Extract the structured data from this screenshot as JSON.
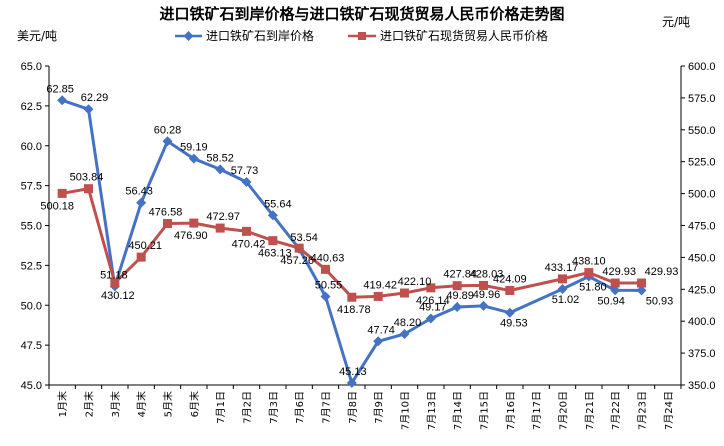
{
  "chart_data": {
    "type": "line",
    "title": "进口铁矿石到岸价格与进口铁矿石现货贸易人民币价格走势图",
    "ylabel_left": "美元/吨",
    "ylabel_right": "元/吨",
    "categories": [
      "1月末",
      "2月末",
      "3月末",
      "4月末",
      "5月末",
      "6月末",
      "7月1日",
      "7月2日",
      "7月3日",
      "7月6日",
      "7月7日",
      "7月8日",
      "7月9日",
      "7月10日",
      "7月13日",
      "7月14日",
      "7月15日",
      "7月16日",
      "7月17日",
      "7月20日",
      "7月21日",
      "7月22日",
      "7月23日",
      "7月24日"
    ],
    "ylim_left": [
      45.0,
      65.0
    ],
    "ylim_right": [
      350.0,
      600.0
    ],
    "yticks_left": [
      "45.0",
      "47.5",
      "50.0",
      "52.5",
      "55.0",
      "57.5",
      "60.0",
      "62.5",
      "65.0"
    ],
    "yticks_right": [
      "350.0",
      "375.0",
      "400.0",
      "425.0",
      "450.0",
      "475.0",
      "500.0",
      "525.0",
      "550.0",
      "575.0",
      "600.0"
    ],
    "grid": false,
    "legend_position": "top",
    "series": [
      {
        "name": "进口铁矿石到岸价格",
        "axis": "left",
        "color": "#4472c4",
        "marker": "diamond",
        "values": [
          62.85,
          62.29,
          51.18,
          56.43,
          60.28,
          59.19,
          58.52,
          57.73,
          55.64,
          53.54,
          50.55,
          45.13,
          47.74,
          48.2,
          49.17,
          49.89,
          49.96,
          49.53,
          null,
          51.02,
          51.8,
          50.94,
          50.93,
          null
        ],
        "labels": [
          "62.85",
          "62.29",
          "51.18",
          "56.43",
          "60.28",
          "59.19",
          "58.52",
          "57.73",
          "55.64",
          "53.54",
          "50.55",
          "45.13",
          "47.74",
          "48.20",
          "49.17",
          "49.89",
          "49.96",
          "49.53",
          "",
          "51.02",
          "51.80",
          "50.94",
          "50.93",
          ""
        ]
      },
      {
        "name": "进口铁矿石现货贸易人民币价格",
        "axis": "right",
        "color": "#c0504d",
        "marker": "square",
        "values": [
          500.18,
          503.84,
          430.12,
          450.21,
          476.58,
          476.9,
          472.97,
          470.42,
          463.13,
          457.26,
          440.63,
          418.78,
          419.42,
          422.1,
          426.14,
          427.84,
          428.03,
          424.09,
          null,
          433.17,
          438.1,
          429.93,
          429.93,
          null
        ],
        "labels": [
          "500.18",
          "503.84",
          "430.12",
          "450.21",
          "476.58",
          "476.90",
          "472.97",
          "470.42",
          "463.13",
          "457.26",
          "440.63",
          "418.78",
          "419.42",
          "422.10",
          "426.14",
          "427.84",
          "428.03",
          "424.09",
          "",
          "433.17",
          "438.10",
          "429.93",
          "429.93",
          ""
        ]
      }
    ]
  }
}
